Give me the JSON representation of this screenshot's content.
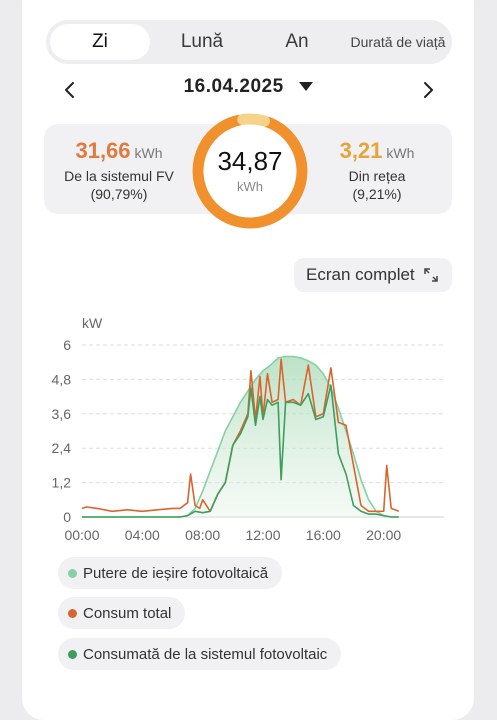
{
  "tabs": [
    {
      "label": "Zi",
      "active": true
    },
    {
      "label": "Lună",
      "active": false
    },
    {
      "label": "An",
      "active": false
    },
    {
      "label": "Durată de viață",
      "active": false
    }
  ],
  "date": "16.04.2025",
  "summary": {
    "left": {
      "value": "31,66",
      "unit": "kWh",
      "label": "De la sistemul FV",
      "percent": "(90,79%)"
    },
    "center": {
      "value": "34,87",
      "unit": "kWh"
    },
    "right": {
      "value": "3,21",
      "unit": "kWh",
      "label": "Din rețea",
      "percent": "(9,21%)"
    }
  },
  "fullscreen_label": "Ecran complet",
  "colors": {
    "pv_left": "#e07a3e",
    "grid_right": "#e8a33a",
    "ring": "#f0912e",
    "ring_secondary": "#f7d38a",
    "pv_output": "#86d0a4",
    "total": "#d8652d",
    "consumed_pv": "#3f9d5e"
  },
  "legend": [
    {
      "label": "Putere de ieșire fotovoltaică",
      "color": "#86d0a4"
    },
    {
      "label": "Consum total",
      "color": "#d8652d"
    },
    {
      "label": "Consumată de la sistemul fotovoltaic",
      "color": "#3f9d5e"
    }
  ],
  "chart_data": {
    "type": "line",
    "ylabel": "kW",
    "ylim": [
      0,
      6
    ],
    "yticks": [
      "0",
      "1,2",
      "2,4",
      "3,6",
      "4,8",
      "6"
    ],
    "xlim": [
      0,
      24
    ],
    "xticks": [
      "00:00",
      "04:00",
      "08:00",
      "12:00",
      "16:00",
      "20:00"
    ],
    "grid": true,
    "series": [
      {
        "name": "Putere de ieșire fotovoltaică",
        "x": [
          0,
          6.5,
          7,
          7.5,
          8,
          8.5,
          9,
          9.5,
          10,
          10.5,
          11,
          11.5,
          12,
          12.5,
          13,
          13.5,
          14,
          14.5,
          15,
          15.5,
          16,
          16.5,
          17,
          17.5,
          18,
          18.5,
          19,
          19.5,
          20,
          20.5,
          21
        ],
        "values": [
          0,
          0,
          0.05,
          0.3,
          0.9,
          1.6,
          2.3,
          3.0,
          3.5,
          4.0,
          4.4,
          4.8,
          5.1,
          5.3,
          5.55,
          5.6,
          5.6,
          5.55,
          5.45,
          5.3,
          5.0,
          4.5,
          3.8,
          3.0,
          2.2,
          1.3,
          0.6,
          0.2,
          0.05,
          0,
          0
        ]
      },
      {
        "name": "Consum total",
        "x": [
          0,
          0.3,
          1,
          2,
          3,
          4,
          5,
          6,
          6.5,
          7,
          7.2,
          7.5,
          7.8,
          8,
          8.5,
          9,
          9.5,
          10,
          10.5,
          11,
          11.2,
          11.5,
          11.8,
          12,
          12.3,
          12.6,
          13,
          13.2,
          13.5,
          14,
          14.5,
          15,
          15.5,
          16,
          16.5,
          17,
          17.5,
          18,
          18.5,
          19,
          19.5,
          20,
          20.2,
          20.5,
          21
        ],
        "values": [
          0.3,
          0.35,
          0.3,
          0.2,
          0.25,
          0.2,
          0.25,
          0.3,
          0.3,
          0.5,
          1.5,
          0.4,
          0.3,
          0.6,
          0.2,
          0.8,
          1.2,
          2.5,
          3.0,
          3.6,
          5.1,
          3.4,
          4.9,
          3.5,
          5.0,
          4.0,
          4.1,
          5.5,
          4.0,
          4.1,
          3.9,
          5.3,
          3.5,
          3.6,
          5.2,
          3.3,
          3.2,
          1.8,
          0.4,
          0.2,
          0.2,
          0.2,
          1.8,
          0.3,
          0.2
        ]
      },
      {
        "name": "Consumată de la sistemul fotovoltaic",
        "x": [
          0,
          6.5,
          7,
          7.5,
          8,
          8.5,
          9,
          9.5,
          10,
          10.5,
          11,
          11.2,
          11.5,
          11.8,
          12,
          12.3,
          12.6,
          13,
          13.2,
          13.5,
          14,
          14.5,
          15,
          15.5,
          16,
          16.5,
          17,
          17.5,
          18,
          18.5,
          19,
          19.5,
          20,
          20.5,
          21
        ],
        "values": [
          0,
          0,
          0.05,
          0.2,
          0.15,
          0.2,
          0.8,
          1.2,
          2.5,
          2.9,
          3.5,
          4.5,
          3.2,
          4.2,
          3.4,
          4.1,
          3.9,
          4.0,
          1.3,
          4.0,
          4.0,
          3.9,
          4.3,
          3.4,
          3.5,
          4.6,
          2.2,
          1.5,
          0.4,
          0.2,
          0.1,
          0.1,
          0.05,
          0,
          0
        ]
      }
    ]
  }
}
